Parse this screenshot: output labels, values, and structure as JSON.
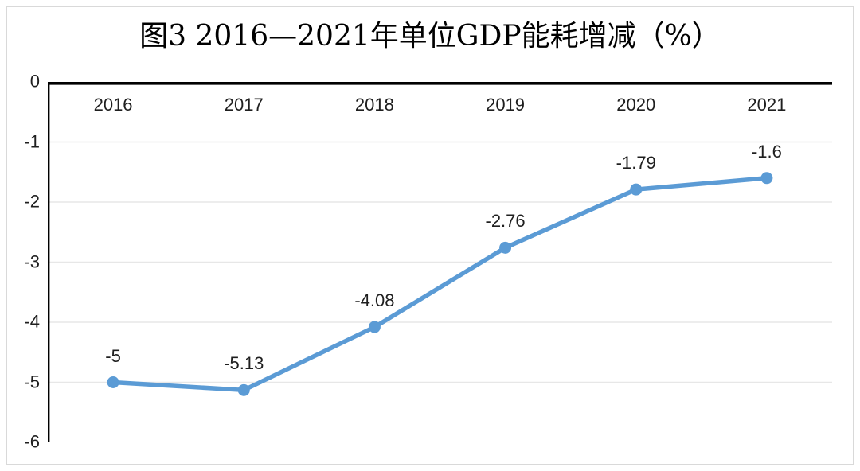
{
  "title": "图3 2016—2021年单位GDP能耗增减（%）",
  "chart_data": {
    "type": "line",
    "categories": [
      "2016",
      "2017",
      "2018",
      "2019",
      "2020",
      "2021"
    ],
    "series": [
      {
        "values": [
          -5,
          -5.13,
          -4.08,
          -2.76,
          -1.79,
          -1.6
        ],
        "labels": [
          "-5",
          "-5.13",
          "-4.08",
          "-2.76",
          "-1.79",
          "-1.6"
        ]
      }
    ],
    "title": "图3 2016—2021年单位GDP能耗增减（%）",
    "xlabel": "",
    "ylabel": "",
    "ylim": [
      -6,
      0
    ],
    "y_ticks": [
      "0",
      "-1",
      "-2",
      "-3",
      "-4",
      "-5",
      "-6"
    ],
    "grid": true,
    "legend": "none",
    "marker": "circle",
    "colors": {
      "line": "#5B9BD5",
      "marker": "#5B9BD5",
      "gridline": "#e7e7e7",
      "axis": "#000000",
      "text": "#1f1f1f",
      "frame_border": "#d9d9d9",
      "background": "#ffffff"
    }
  }
}
